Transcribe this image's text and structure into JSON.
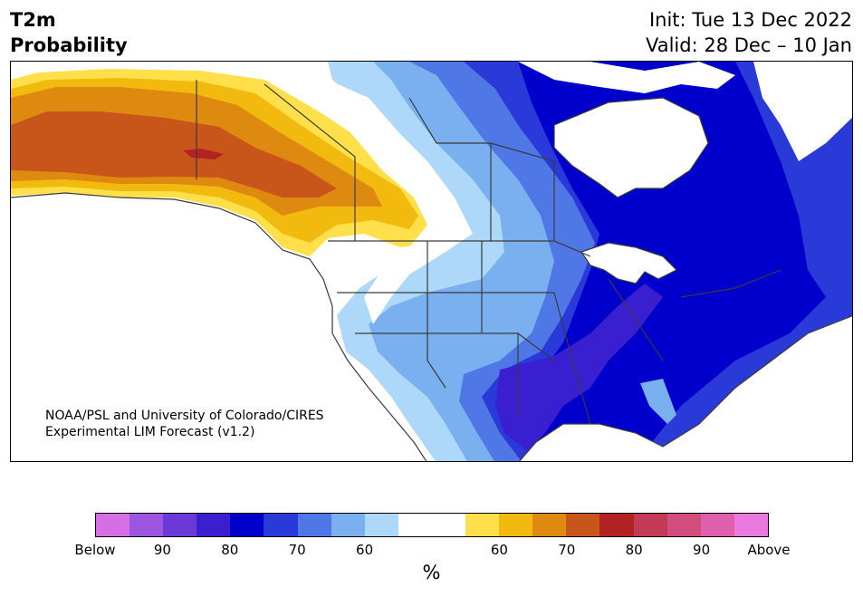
{
  "title": {
    "line1": "T2m",
    "line2": "Probability"
  },
  "info": {
    "init": "Init: Tue 13 Dec 2022",
    "valid": "Valid: 28 Dec – 10 Jan"
  },
  "credit": {
    "line1": "NOAA/PSL and University of Colorado/CIRES",
    "line2": "Experimental LIM Forecast (v1.2)"
  },
  "colorbar": {
    "colors": [
      "#d66ee6",
      "#9b55df",
      "#6b3ad6",
      "#3a1fd1",
      "#0000cd",
      "#2a3ad8",
      "#4f77e6",
      "#7ab0ef",
      "#aed8f9",
      "#ffffff",
      "#ffffff",
      "#ffe04a",
      "#f2b90f",
      "#de8a10",
      "#c8561a",
      "#b22222",
      "#c23a55",
      "#d04d7e",
      "#de60ad",
      "#e978df"
    ],
    "ticks": [
      "Below",
      "90",
      "80",
      "70",
      "60",
      "60",
      "70",
      "80",
      "90",
      "Above"
    ],
    "unit": "%"
  },
  "map_colors": {
    "land": "#ffffff",
    "outline": "#3a3a3a",
    "blue1": "#aed8f9",
    "blue2": "#7ab0ef",
    "blue3": "#4f77e6",
    "blue4": "#2a3ad8",
    "blue5": "#0000cd",
    "blue6": "#3a1fd1",
    "warm1": "#ffe04a",
    "warm2": "#f2b90f",
    "warm3": "#de8a10",
    "warm4": "#c8561a",
    "warm5": "#b22222"
  }
}
